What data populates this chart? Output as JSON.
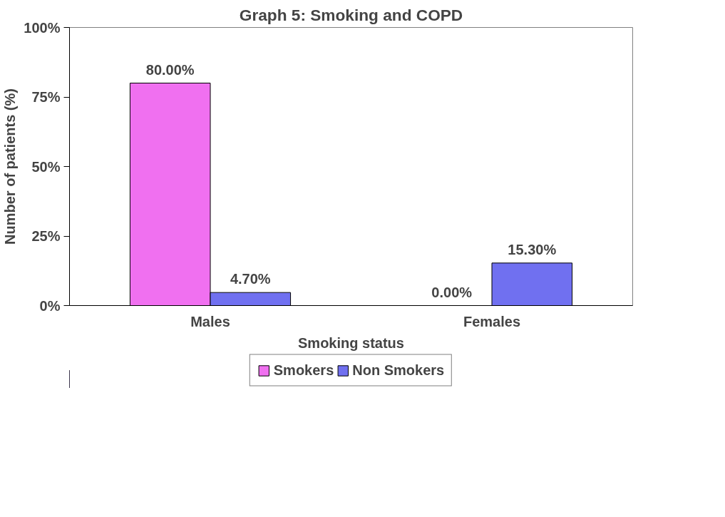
{
  "chart_data": {
    "type": "bar",
    "title": "Graph 5: Smoking and COPD",
    "xlabel": "Smoking status",
    "ylabel": "Number of patients (%)",
    "categories": [
      "Males",
      "Females"
    ],
    "series": [
      {
        "name": "Smokers",
        "color": "#f070f0",
        "values": [
          80.0,
          0.0
        ],
        "value_labels": [
          "80.00%",
          "0.00%"
        ]
      },
      {
        "name": "Non Smokers",
        "color": "#7070f0",
        "values": [
          4.7,
          15.3
        ],
        "value_labels": [
          "4.70%",
          "15.30%"
        ]
      }
    ],
    "ylim": [
      0,
      100
    ],
    "yticks": [
      {
        "value": 0,
        "label": "0%"
      },
      {
        "value": 25,
        "label": "25%"
      },
      {
        "value": 50,
        "label": "50%"
      },
      {
        "value": 75,
        "label": "75%"
      },
      {
        "value": 100,
        "label": "100%"
      }
    ],
    "grid": false,
    "legend": "bottom"
  }
}
